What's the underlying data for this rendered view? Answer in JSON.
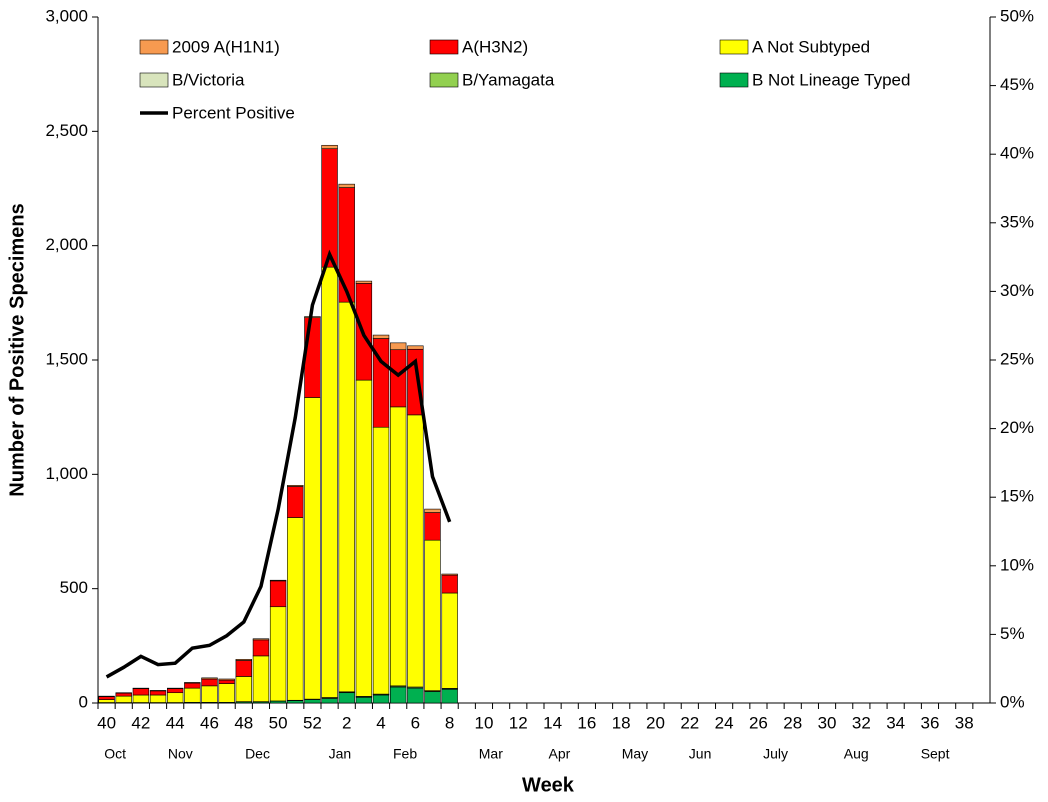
{
  "chart_data": {
    "type": "bar",
    "stacked": true,
    "x_label": "Week",
    "y_label": "Number of Positive Specimens",
    "categories": [
      "40",
      null,
      "42",
      null,
      "44",
      null,
      "46",
      null,
      "48",
      null,
      "50",
      null,
      "52",
      null,
      "2",
      null,
      "4",
      null,
      "6",
      null,
      "8",
      null,
      "10",
      null,
      "12",
      null,
      "14",
      null,
      "16",
      null,
      "18",
      null,
      "20",
      null,
      "22",
      null,
      "24",
      null,
      "26",
      null,
      "28",
      null,
      "30",
      null,
      "32",
      null,
      "34",
      null,
      "36",
      null,
      "38",
      null
    ],
    "month_labels": [
      "Oct",
      "Nov",
      "Dec",
      "Jan",
      "Feb",
      "Mar",
      "Apr",
      "May",
      "Jun",
      "July",
      "Aug",
      "Sept"
    ],
    "ylim": [
      0,
      3000
    ],
    "yticks": [
      0,
      500,
      {
        "value": 1000,
        "label": "1,000"
      },
      {
        "value": 1500,
        "label": "1,500"
      },
      {
        "value": 2000,
        "label": "2,000"
      },
      {
        "value": 2500,
        "label": "2,500"
      },
      {
        "value": 3000,
        "label": "3,000"
      }
    ],
    "y2lim": [
      0,
      50
    ],
    "y2ticks": [
      {
        "value": 0,
        "label": "0%"
      },
      {
        "value": 5,
        "label": "5%"
      },
      {
        "value": 10,
        "label": "10%"
      },
      {
        "value": 15,
        "label": "15%"
      },
      {
        "value": 20,
        "label": "20%"
      },
      {
        "value": 25,
        "label": "25%"
      },
      {
        "value": 30,
        "label": "30%"
      },
      {
        "value": 35,
        "label": "35%"
      },
      {
        "value": 40,
        "label": "40%"
      },
      {
        "value": 45,
        "label": "45%"
      },
      {
        "value": 50,
        "label": "50%"
      }
    ],
    "legend": "top",
    "series": [
      {
        "name": "2009 A(H1N1)",
        "color": "#f79a50",
        "values": [
          2,
          2,
          2,
          2,
          2,
          3,
          5,
          5,
          5,
          5,
          3,
          5,
          5,
          15,
          15,
          10,
          15,
          30,
          15,
          15,
          5,
          null,
          null,
          null,
          null,
          null,
          null,
          null,
          null,
          null,
          null,
          null,
          null,
          null,
          null,
          null,
          null,
          null,
          null,
          null,
          null,
          null,
          null,
          null,
          null,
          null,
          null,
          null,
          null,
          null,
          null,
          null
        ]
      },
      {
        "name": "A(H3N2)",
        "color": "#ff0000",
        "values": [
          13,
          13,
          28,
          18,
          18,
          22,
          30,
          15,
          70,
          70,
          113,
          136,
          349,
          518,
          501,
          423,
          388,
          250,
          287,
          121,
          78,
          null,
          null,
          null,
          null,
          null,
          null,
          null,
          null,
          null,
          null,
          null,
          null,
          null,
          null,
          null,
          null,
          null,
          null,
          null,
          null,
          null,
          null,
          null,
          null,
          null,
          null,
          null,
          null,
          null,
          null,
          null
        ]
      },
      {
        "name": "A Not Subtyped",
        "color": "#ffff00",
        "values": [
          13,
          28,
          33,
          33,
          43,
          62,
          72,
          82,
          110,
          200,
          412,
          799,
          1319,
          1882,
          1704,
          1383,
          1167,
          1220,
          1190,
          658,
          417,
          null,
          null,
          null,
          null,
          null,
          null,
          null,
          null,
          null,
          null,
          null,
          null,
          null,
          null,
          null,
          null,
          null,
          null,
          null,
          null,
          null,
          null,
          null,
          null,
          null,
          null,
          null,
          null,
          null,
          null,
          null
        ]
      },
      {
        "name": "B/Victoria",
        "color": "#d8e4bc",
        "values": [
          0,
          0,
          0,
          0,
          0,
          0,
          0,
          0,
          0,
          0,
          0,
          0,
          0,
          1,
          1,
          1,
          1,
          1,
          1,
          1,
          1,
          null,
          null,
          null,
          null,
          null,
          null,
          null,
          null,
          null,
          null,
          null,
          null,
          null,
          null,
          null,
          null,
          null,
          null,
          null,
          null,
          null,
          null,
          null,
          null,
          null,
          null,
          null,
          null,
          null,
          null,
          null
        ]
      },
      {
        "name": "B/Yamagata",
        "color": "#92d050",
        "values": [
          0,
          0,
          0,
          0,
          0,
          0,
          0,
          0,
          1,
          1,
          1,
          2,
          2,
          3,
          3,
          3,
          3,
          4,
          4,
          3,
          3,
          null,
          null,
          null,
          null,
          null,
          null,
          null,
          null,
          null,
          null,
          null,
          null,
          null,
          null,
          null,
          null,
          null,
          null,
          null,
          null,
          null,
          null,
          null,
          null,
          null,
          null,
          null,
          null,
          null,
          null,
          null
        ]
      },
      {
        "name": "B Not Lineage Typed",
        "color": "#00b050",
        "values": [
          2,
          2,
          2,
          2,
          2,
          3,
          3,
          3,
          5,
          5,
          8,
          10,
          15,
          20,
          45,
          25,
          35,
          70,
          65,
          50,
          60,
          null,
          null,
          null,
          null,
          null,
          null,
          null,
          null,
          null,
          null,
          null,
          null,
          null,
          null,
          null,
          null,
          null,
          null,
          null,
          null,
          null,
          null,
          null,
          null,
          null,
          null,
          null,
          null,
          null,
          null,
          null
        ]
      },
      {
        "name": "Percent Positive",
        "type": "line",
        "axis": "y2",
        "color": "#000000",
        "values": [
          1.9,
          2.6,
          3.4,
          2.8,
          2.9,
          4.0,
          4.2,
          4.9,
          5.9,
          8.5,
          14.1,
          20.8,
          29.0,
          32.7,
          30.0,
          26.8,
          24.9,
          23.9,
          24.9,
          16.5,
          13.2,
          null,
          null,
          null,
          null,
          null,
          null,
          null,
          null,
          null,
          null,
          null,
          null,
          null,
          null,
          null,
          null,
          null,
          null,
          null,
          null,
          null,
          null,
          null,
          null,
          null,
          null,
          null,
          null,
          null,
          null,
          null
        ]
      }
    ]
  }
}
